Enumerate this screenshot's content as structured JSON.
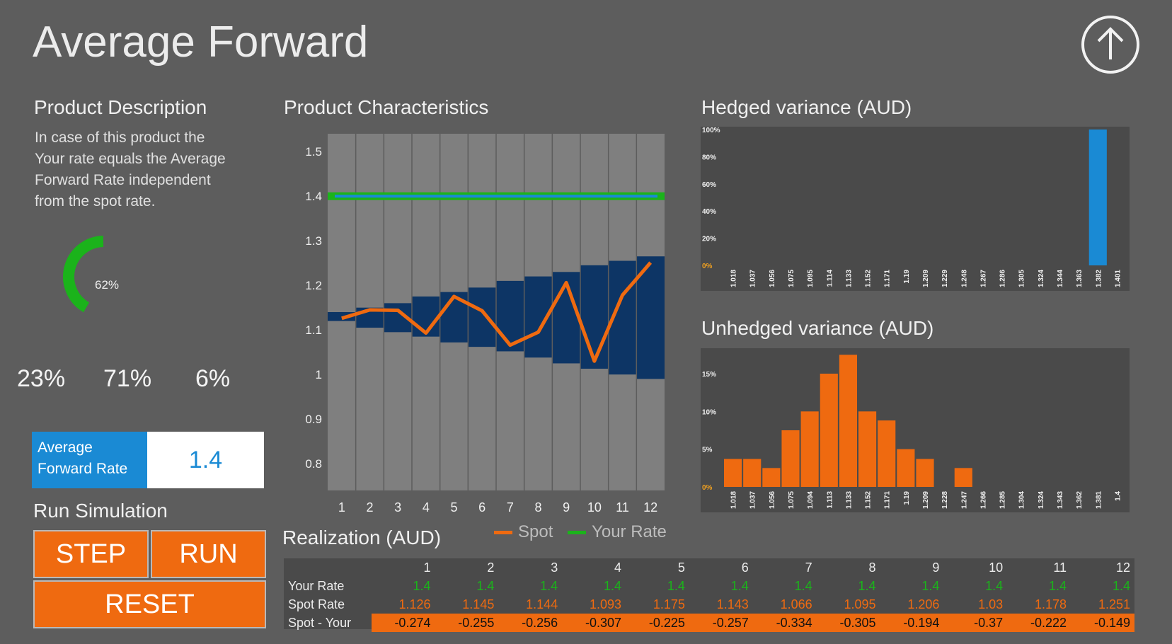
{
  "page": {
    "title": "Average Forward"
  },
  "description": {
    "heading": "Product Description",
    "lines": [
      "In case of this product the",
      "Your rate equals the Average",
      "Forward Rate independent",
      "from the spot rate."
    ]
  },
  "gauge": {
    "value_label": "62%",
    "fraction": 0.62,
    "color": "#1bb31b"
  },
  "percent_stats": [
    "23%",
    "71%",
    "6%"
  ],
  "average_forward_rate": {
    "label_line1": "Average",
    "label_line2": "Forward Rate",
    "value": "1.4"
  },
  "simulation": {
    "heading": "Run Simulation",
    "step_label": "STEP",
    "run_label": "RUN",
    "reset_label": "RESET"
  },
  "characteristics": {
    "heading": "Product Characteristics",
    "legend": [
      {
        "label": "Spot",
        "color": "#ef6a10"
      },
      {
        "label": "Your Rate",
        "color": "#1bb31b"
      }
    ]
  },
  "hedged": {
    "heading": "Hedged variance (AUD)"
  },
  "unhedged": {
    "heading": "Unhedged variance (AUD)"
  },
  "realization": {
    "heading": "Realization (AUD)",
    "columns": [
      "1",
      "2",
      "3",
      "4",
      "5",
      "6",
      "7",
      "8",
      "9",
      "10",
      "11",
      "12"
    ],
    "rows": [
      {
        "label": "Your Rate",
        "values": [
          "1.4",
          "1.4",
          "1.4",
          "1.4",
          "1.4",
          "1.4",
          "1.4",
          "1.4",
          "1.4",
          "1.4",
          "1.4",
          "1.4"
        ]
      },
      {
        "label": "Spot Rate",
        "values": [
          "1.126",
          "1.145",
          "1.144",
          "1.093",
          "1.175",
          "1.143",
          "1.066",
          "1.095",
          "1.206",
          "1.03",
          "1.178",
          "1.251"
        ]
      },
      {
        "label": "Spot - Your",
        "values": [
          "-0.274",
          "-0.255",
          "-0.256",
          "-0.307",
          "-0.225",
          "-0.257",
          "-0.334",
          "-0.305",
          "-0.194",
          "-0.37",
          "-0.222",
          "-0.149"
        ]
      }
    ]
  },
  "chart_data": [
    {
      "type": "line",
      "title": "Product Characteristics",
      "x": [
        1,
        2,
        3,
        4,
        5,
        6,
        7,
        8,
        9,
        10,
        11,
        12
      ],
      "yticks": [
        "0.8",
        "0.9",
        "1",
        "1.1",
        "1.2",
        "1.3",
        "1.4",
        "1.5"
      ],
      "ylim": [
        0.74,
        1.54
      ],
      "series": [
        {
          "name": "Spot",
          "values": [
            1.126,
            1.145,
            1.144,
            1.093,
            1.175,
            1.143,
            1.066,
            1.095,
            1.206,
            1.03,
            1.178,
            1.251
          ],
          "color": "#ef6a10"
        },
        {
          "name": "Your Rate",
          "values": [
            1.4,
            1.4,
            1.4,
            1.4,
            1.4,
            1.4,
            1.4,
            1.4,
            1.4,
            1.4,
            1.4,
            1.4
          ],
          "color": "#1bb31b"
        }
      ],
      "band_low": [
        1.12,
        1.105,
        1.095,
        1.085,
        1.072,
        1.062,
        1.052,
        1.038,
        1.025,
        1.013,
        1.0,
        0.99
      ],
      "band_high": [
        1.14,
        1.15,
        1.16,
        1.175,
        1.185,
        1.195,
        1.21,
        1.22,
        1.23,
        1.245,
        1.255,
        1.265
      ]
    },
    {
      "type": "bar",
      "title": "Hedged variance (AUD)",
      "categories": [
        "1.018",
        "1.037",
        "1.056",
        "1.075",
        "1.095",
        "1.114",
        "1.133",
        "1.152",
        "1.171",
        "1.19",
        "1.209",
        "1.229",
        "1.248",
        "1.267",
        "1.286",
        "1.305",
        "1.324",
        "1.344",
        "1.363",
        "1.382",
        "1.401"
      ],
      "values": [
        0,
        0,
        0,
        0,
        0,
        0,
        0,
        0,
        0,
        0,
        0,
        0,
        0,
        0,
        0,
        0,
        0,
        0,
        0,
        1.0,
        0
      ],
      "yticks": [
        "0%",
        "20%",
        "40%",
        "60%",
        "80%",
        "100%"
      ],
      "ylim": [
        0,
        1.0
      ],
      "color": "#1a8ad4"
    },
    {
      "type": "bar",
      "title": "Unhedged variance (AUD)",
      "categories": [
        "1.018",
        "1.037",
        "1.056",
        "1.075",
        "1.094",
        "1.113",
        "1.133",
        "1.152",
        "1.171",
        "1.19",
        "1.209",
        "1.228",
        "1.247",
        "1.266",
        "1.285",
        "1.304",
        "1.324",
        "1.343",
        "1.362",
        "1.381",
        "1.4"
      ],
      "values": [
        0.037,
        0.037,
        0.025,
        0.075,
        0.1,
        0.15,
        0.175,
        0.1,
        0.088,
        0.05,
        0.037,
        0,
        0.025,
        0,
        0,
        0,
        0,
        0,
        0,
        0,
        0
      ],
      "yticks": [
        "0%",
        "5%",
        "10%",
        "15%"
      ],
      "ylim": [
        0,
        0.18
      ],
      "color": "#ef6a10"
    }
  ]
}
